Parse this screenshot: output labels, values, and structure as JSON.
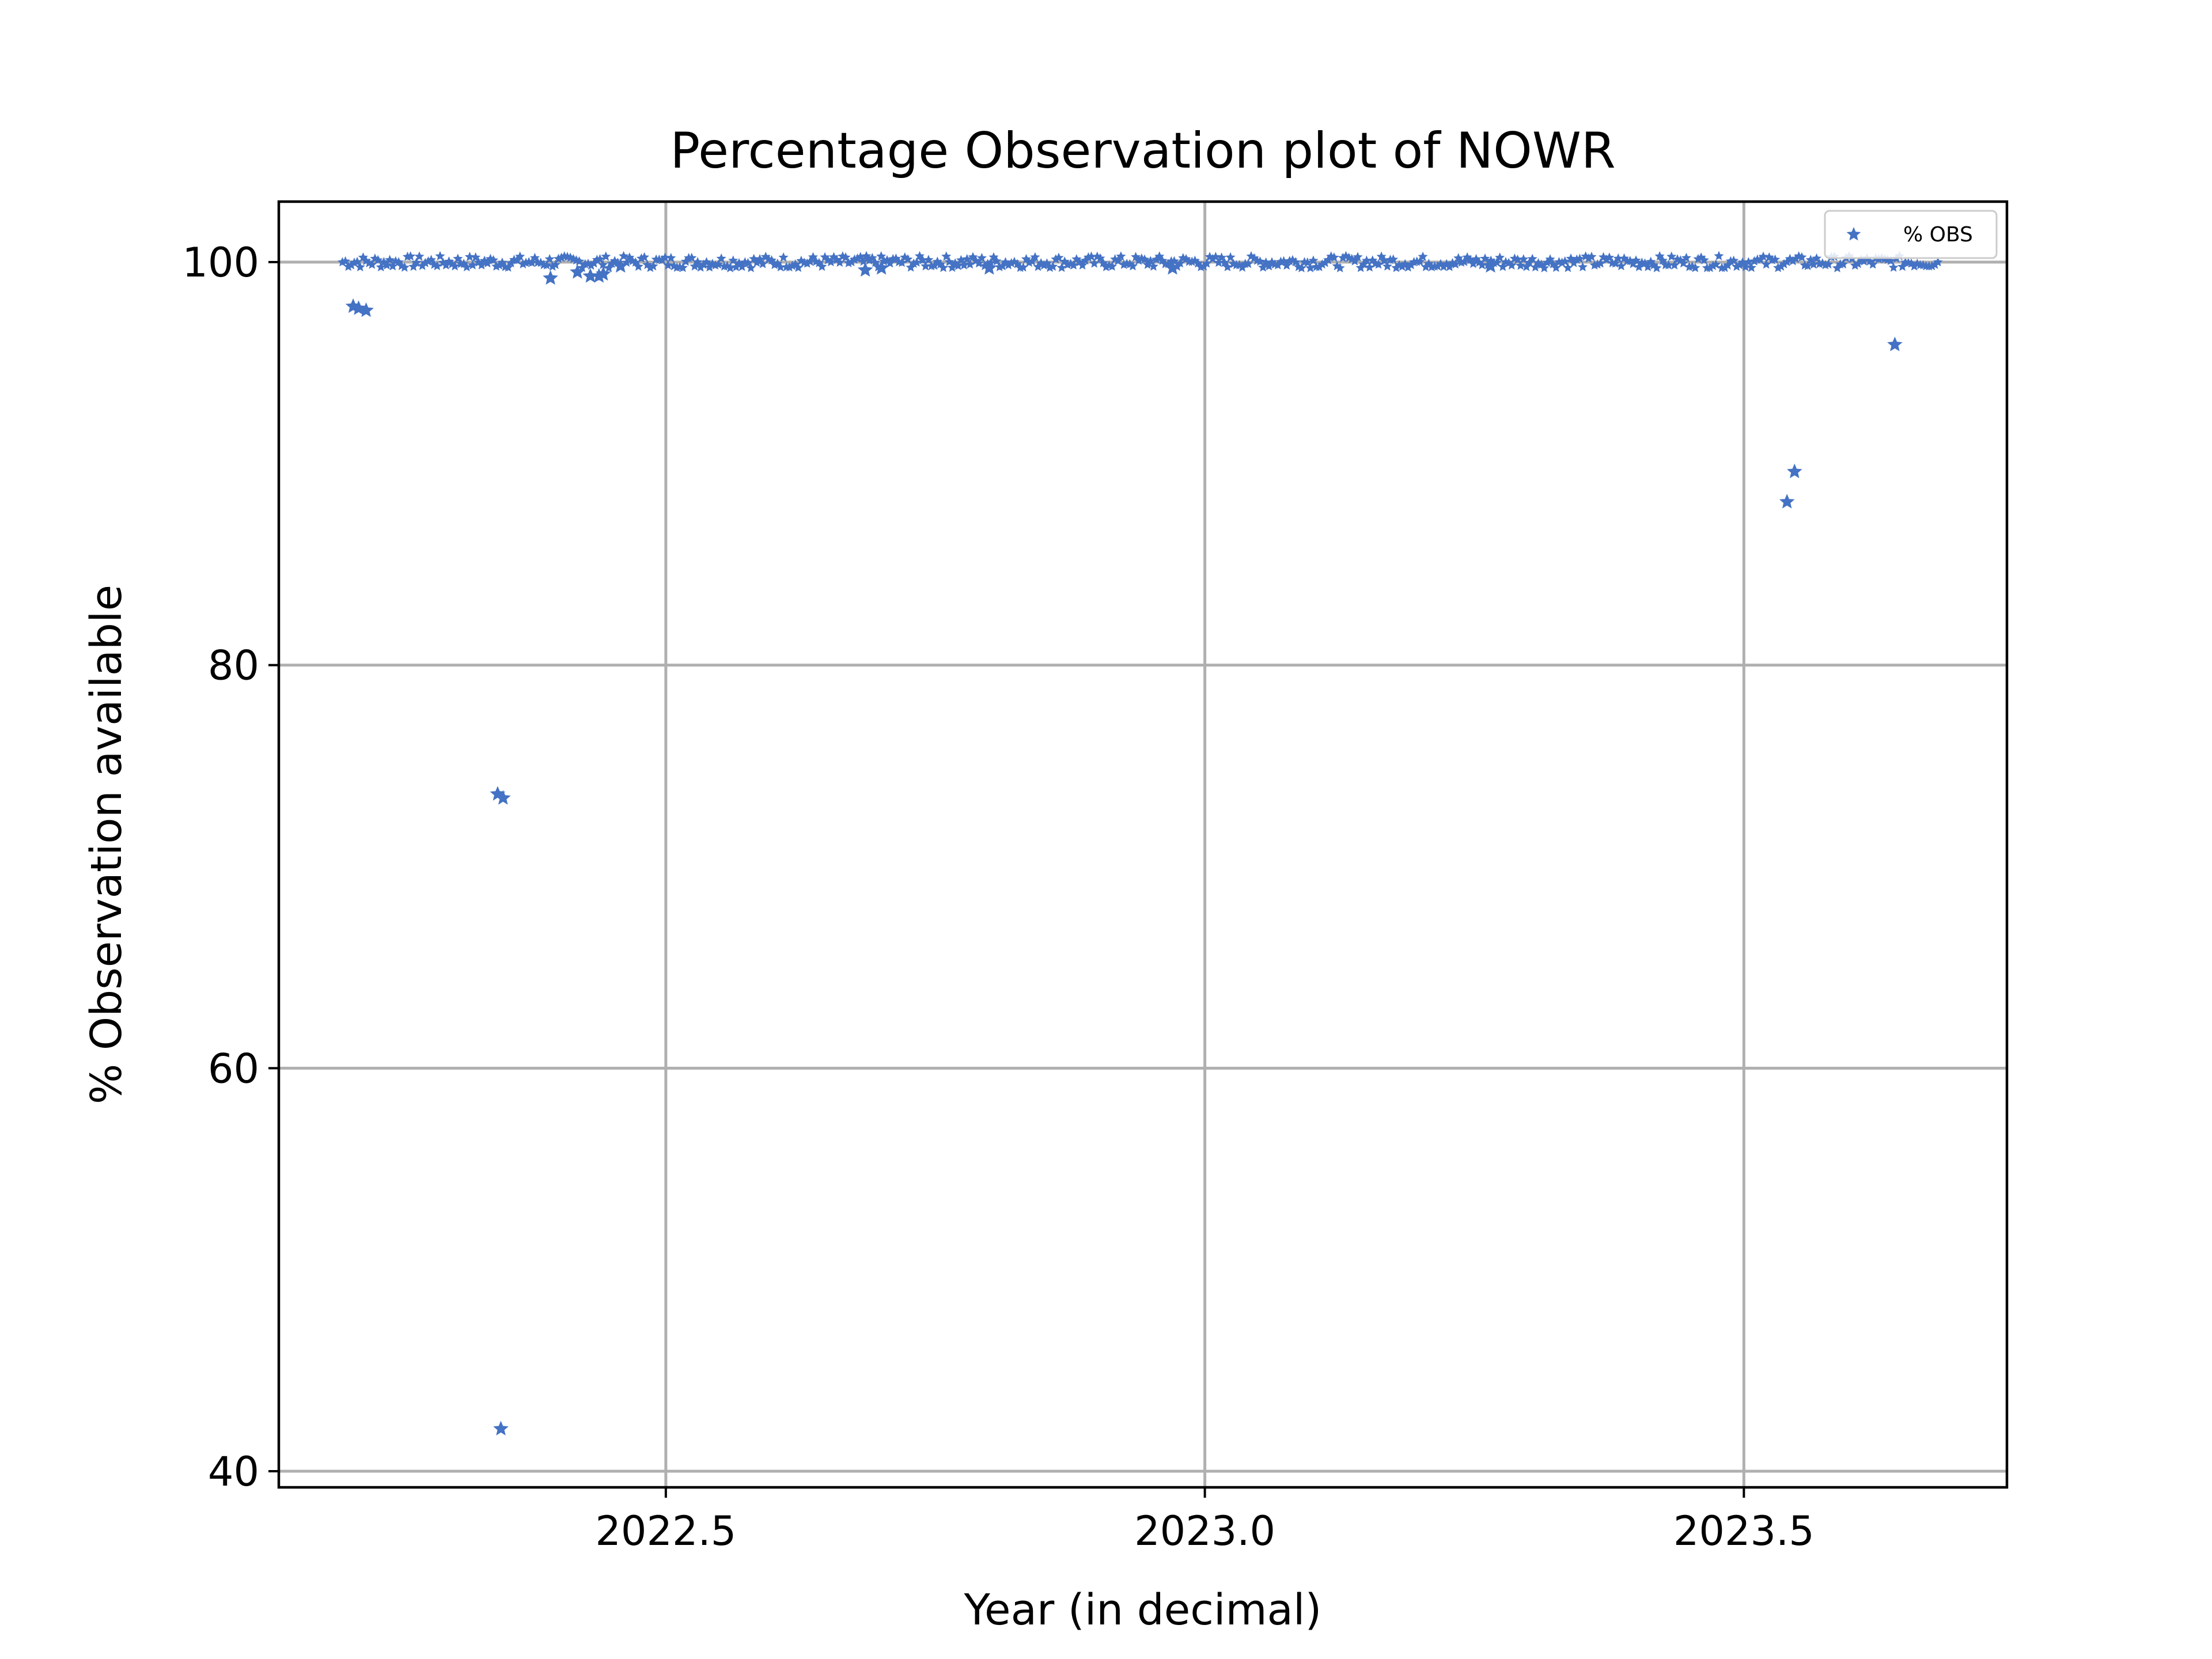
{
  "chart_data": {
    "type": "scatter",
    "title": "Percentage Observation plot of NOWR",
    "xlabel": "Year (in decimal)",
    "ylabel": "% Observation available",
    "xlim": [
      2022.141,
      2023.744
    ],
    "ylim": [
      39.2,
      103.0
    ],
    "xticks": [
      2022.5,
      2023.0,
      2023.5
    ],
    "xtick_labels": [
      "2022.5",
      "2023.0",
      "2023.5"
    ],
    "yticks": [
      40,
      60,
      80,
      100
    ],
    "ytick_labels": [
      "40",
      "60",
      "80",
      "100"
    ],
    "grid": true,
    "legend": {
      "position": "upper-right",
      "entries": [
        "% OBS"
      ]
    },
    "series": [
      {
        "name": "% OBS",
        "color": "#4472c4",
        "marker": "star",
        "points": [
          [
            2022.21,
            97.8
          ],
          [
            2022.215,
            97.7
          ],
          [
            2022.222,
            97.6
          ],
          [
            2022.344,
            73.6
          ],
          [
            2022.349,
            73.4
          ],
          [
            2022.347,
            42.1
          ],
          [
            2022.393,
            99.2
          ],
          [
            2022.418,
            99.5
          ],
          [
            2022.43,
            99.3
          ],
          [
            2022.438,
            99.3
          ],
          [
            2022.442,
            99.4
          ],
          [
            2022.458,
            99.8
          ],
          [
            2022.685,
            99.6
          ],
          [
            2022.7,
            99.7
          ],
          [
            2022.8,
            99.7
          ],
          [
            2022.97,
            99.7
          ],
          [
            2023.265,
            99.8
          ],
          [
            2023.54,
            88.1
          ],
          [
            2023.547,
            89.6
          ],
          [
            2023.64,
            95.9
          ]
        ],
        "dense_band": {
          "x_start": 2022.2,
          "x_end": 2023.68,
          "y_center": 100.0,
          "y_spread": 0.3
        }
      }
    ]
  }
}
